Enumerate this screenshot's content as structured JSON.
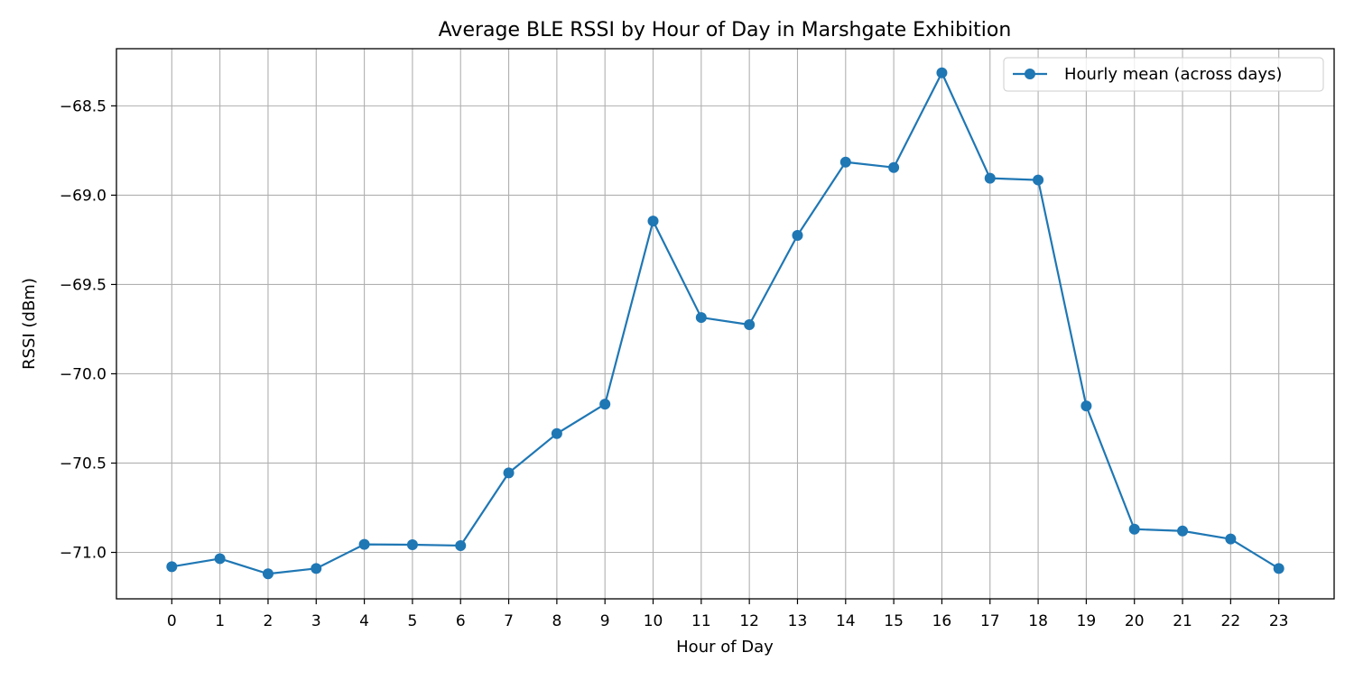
{
  "chart_data": {
    "type": "line",
    "title": "Average BLE RSSI by Hour of Day in Marshgate Exhibition",
    "xlabel": "Hour of Day",
    "ylabel": "RSSI (dBm)",
    "x": [
      0,
      1,
      2,
      3,
      4,
      5,
      6,
      7,
      8,
      9,
      10,
      11,
      12,
      13,
      14,
      15,
      16,
      17,
      18,
      19,
      20,
      21,
      22,
      23
    ],
    "xticks": [
      "0",
      "1",
      "2",
      "3",
      "4",
      "5",
      "6",
      "7",
      "8",
      "9",
      "10",
      "11",
      "12",
      "13",
      "14",
      "15",
      "16",
      "17",
      "18",
      "19",
      "20",
      "21",
      "22",
      "23"
    ],
    "yticks": [
      "−68.5",
      "−69.0",
      "−69.5",
      "−70.0",
      "−70.5",
      "−71.0"
    ],
    "ytick_values": [
      -68.5,
      -69.0,
      -69.5,
      -70.0,
      -70.5,
      -71.0
    ],
    "xlim": [
      -1.15,
      24.15
    ],
    "ylim": [
      -71.26,
      -68.18
    ],
    "grid": true,
    "legend_position": "top-right",
    "series": [
      {
        "name": "Hourly mean (across days)",
        "color": "#1f77b4",
        "marker": "circle",
        "values": [
          -71.08,
          -71.035,
          -71.12,
          -71.09,
          -70.955,
          -70.957,
          -70.962,
          -70.555,
          -70.335,
          -70.17,
          -69.145,
          -69.685,
          -69.725,
          -69.225,
          -68.815,
          -68.845,
          -68.315,
          -68.905,
          -68.915,
          -70.18,
          -70.87,
          -70.88,
          -70.925,
          -71.09
        ]
      }
    ]
  }
}
